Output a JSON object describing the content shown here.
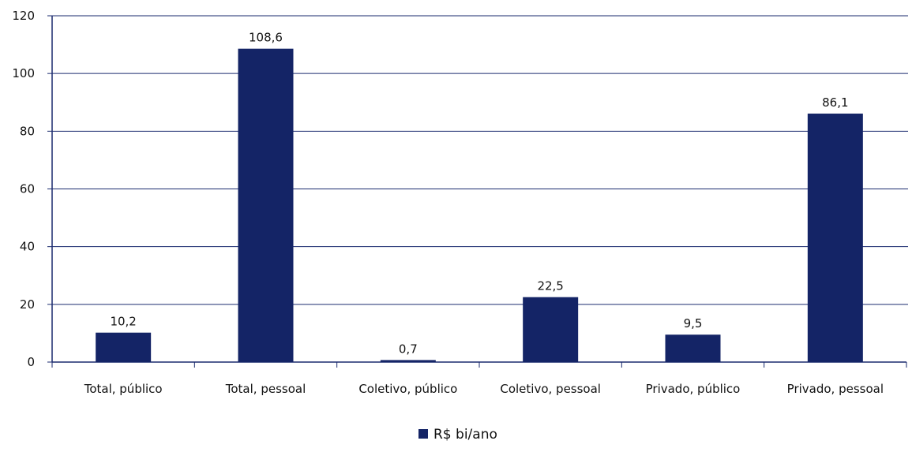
{
  "chart_data": {
    "type": "bar",
    "title": "",
    "xlabel": "",
    "ylabel": "",
    "categories": [
      "Total, público",
      "Total, pessoal",
      "Coletivo, público",
      "Coletivo, pessoal",
      "Privado, público",
      "Privado, pessoal"
    ],
    "series": [
      {
        "name": "R$ bi/ano",
        "values": [
          10.2,
          108.6,
          0.7,
          22.5,
          9.5,
          86.1
        ],
        "data_labels": [
          "10,2",
          "108,6",
          "0,7",
          "22,5",
          "9,5",
          "86,1"
        ]
      }
    ],
    "ylim": [
      0,
      120
    ],
    "yticks": [
      0,
      20,
      40,
      60,
      80,
      100,
      120
    ],
    "grid": true,
    "legend_position": "bottom-center",
    "colors": {
      "bar": "#142466",
      "axis": "#1a2a6e",
      "grid": "#1a2a6e"
    }
  }
}
